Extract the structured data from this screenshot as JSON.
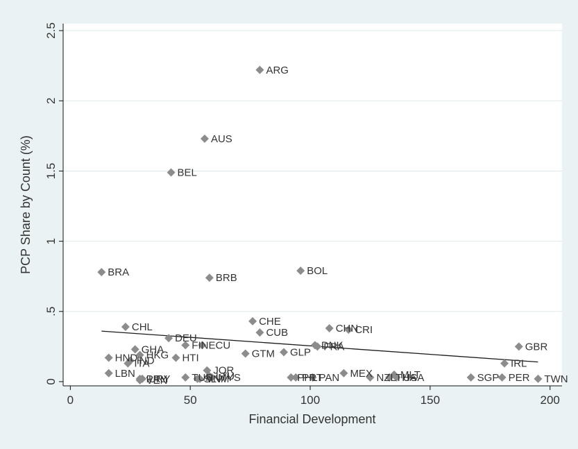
{
  "chart_data": {
    "type": "scatter",
    "title": "",
    "xlabel": "Financial Development",
    "ylabel": "PCP Share by Count (%)",
    "xlim": [
      -3,
      205
    ],
    "ylim": [
      -0.03,
      2.55
    ],
    "xticks": [
      0,
      50,
      100,
      150,
      200
    ],
    "xtick_labels": [
      "0",
      "50",
      "100",
      "150",
      "200"
    ],
    "yticks": [
      0,
      0.5,
      1,
      1.5,
      2,
      2.5
    ],
    "ytick_labels": [
      "0",
      ".5",
      "1",
      "1.5",
      "2",
      "2.5"
    ],
    "grid": "horizontal",
    "legend": "none",
    "marker": "diamond",
    "colors": {
      "background": "#eaf2f3",
      "plot_background": "#ffffff",
      "marker": "#8c8c8c",
      "fit_line": "#1a1a1a",
      "grid": "#e1eaea"
    },
    "points": [
      {
        "label": "ARG",
        "x": 79,
        "y": 2.22
      },
      {
        "label": "AUS",
        "x": 56,
        "y": 1.73
      },
      {
        "label": "BEL",
        "x": 42,
        "y": 1.49
      },
      {
        "label": "BRA",
        "x": 13,
        "y": 0.78
      },
      {
        "label": "BRB",
        "x": 58,
        "y": 0.74
      },
      {
        "label": "BOL",
        "x": 96,
        "y": 0.79
      },
      {
        "label": "CHL",
        "x": 23,
        "y": 0.39
      },
      {
        "label": "CHE",
        "x": 76,
        "y": 0.43
      },
      {
        "label": "CUB",
        "x": 79,
        "y": 0.35
      },
      {
        "label": "CHN",
        "x": 108,
        "y": 0.38
      },
      {
        "label": "CRI",
        "x": 116,
        "y": 0.37
      },
      {
        "label": "DEU",
        "x": 41,
        "y": 0.31
      },
      {
        "label": "FIN",
        "x": 48,
        "y": 0.26
      },
      {
        "label": "ECU",
        "x": 55,
        "y": 0.26
      },
      {
        "label": "GHA",
        "x": 27,
        "y": 0.23
      },
      {
        "label": "HKG",
        "x": 29,
        "y": 0.19
      },
      {
        "label": "HND",
        "x": 16,
        "y": 0.17
      },
      {
        "label": "HTI",
        "x": 44,
        "y": 0.17
      },
      {
        "label": "IND",
        "x": 25,
        "y": 0.15
      },
      {
        "label": "ITA",
        "x": 24,
        "y": 0.13
      },
      {
        "label": "GTM",
        "x": 73,
        "y": 0.2
      },
      {
        "label": "GLP",
        "x": 89,
        "y": 0.21
      },
      {
        "label": "DNK",
        "x": 102,
        "y": 0.26
      },
      {
        "label": "FRA",
        "x": 103,
        "y": 0.25
      },
      {
        "label": "GBR",
        "x": 187,
        "y": 0.25
      },
      {
        "label": "IRL",
        "x": 181,
        "y": 0.13
      },
      {
        "label": "LBN",
        "x": 16,
        "y": 0.06
      },
      {
        "label": "JOR",
        "x": 57,
        "y": 0.08
      },
      {
        "label": "PRY",
        "x": 29,
        "y": 0.02
      },
      {
        "label": "URY",
        "x": 30,
        "y": 0.02
      },
      {
        "label": "VEN",
        "x": 29,
        "y": 0.01
      },
      {
        "label": "TUR",
        "x": 48,
        "y": 0.03
      },
      {
        "label": "SLV",
        "x": 53,
        "y": 0.02
      },
      {
        "label": "VNM",
        "x": 54,
        "y": 0.02
      },
      {
        "label": "LTU",
        "x": 58,
        "y": 0.04
      },
      {
        "label": "MYS",
        "x": 59,
        "y": 0.03
      },
      {
        "label": "PHL",
        "x": 92,
        "y": 0.03
      },
      {
        "label": "PRT",
        "x": 94,
        "y": 0.03
      },
      {
        "label": "PAN",
        "x": 101,
        "y": 0.03
      },
      {
        "label": "MEX",
        "x": 114,
        "y": 0.06
      },
      {
        "label": "NZL",
        "x": 125,
        "y": 0.03
      },
      {
        "label": "THA",
        "x": 133,
        "y": 0.03
      },
      {
        "label": "USA",
        "x": 136,
        "y": 0.03
      },
      {
        "label": "MLT",
        "x": 135,
        "y": 0.05
      },
      {
        "label": "SGP",
        "x": 167,
        "y": 0.03
      },
      {
        "label": "PER",
        "x": 180,
        "y": 0.03
      },
      {
        "label": "TWN",
        "x": 195,
        "y": 0.02
      }
    ],
    "fit_line": {
      "x": [
        13,
        195
      ],
      "y": [
        0.36,
        0.14
      ]
    }
  }
}
